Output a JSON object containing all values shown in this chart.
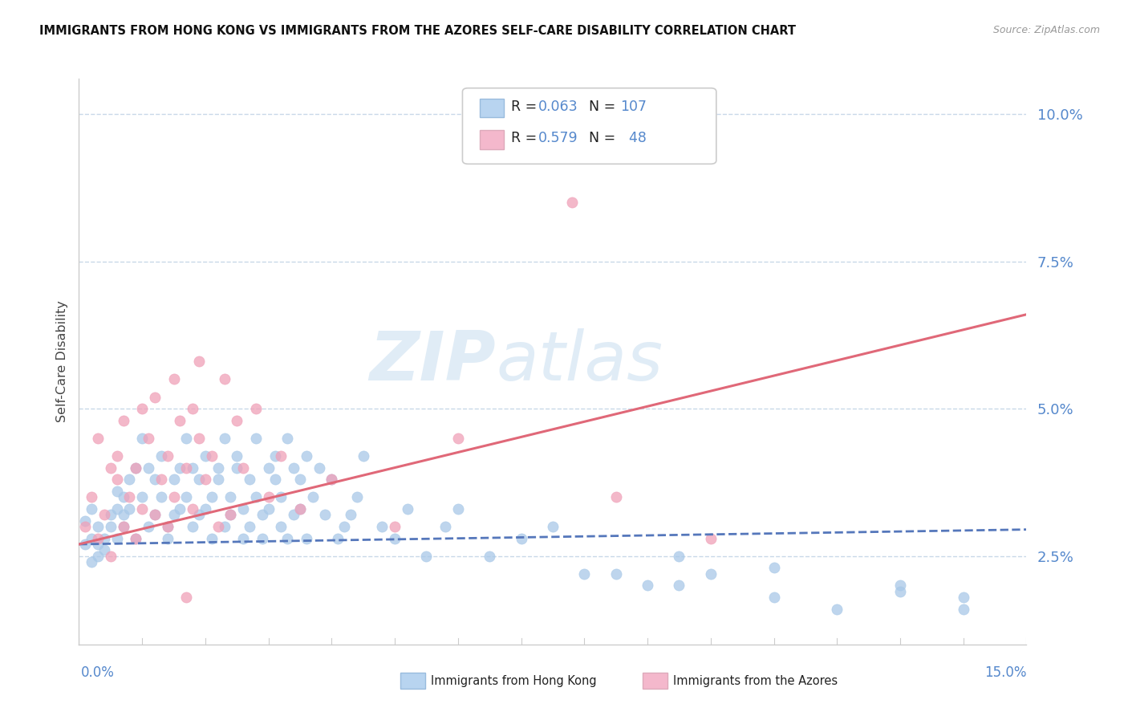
{
  "title": "IMMIGRANTS FROM HONG KONG VS IMMIGRANTS FROM THE AZORES SELF-CARE DISABILITY CORRELATION CHART",
  "source": "Source: ZipAtlas.com",
  "ylabel": "Self-Care Disability",
  "yticks": [
    0.025,
    0.05,
    0.075,
    0.1
  ],
  "ytick_labels": [
    "2.5%",
    "5.0%",
    "7.5%",
    "10.0%"
  ],
  "xmin": 0.0,
  "xmax": 0.15,
  "ymin": 0.01,
  "ymax": 0.106,
  "hk_color": "#a8c8e8",
  "azores_color": "#f0a0b8",
  "hk_line_color": "#5577bb",
  "azores_line_color": "#e06878",
  "legend_hk_color": "#b8d4f0",
  "legend_azores_color": "#f4b8cc",
  "R_hk": 0.063,
  "N_hk": 107,
  "R_azores": 0.579,
  "N_azores": 48,
  "hk_trend_x": [
    0.0,
    0.15
  ],
  "hk_trend_y": [
    0.027,
    0.0295
  ],
  "azores_trend_x": [
    0.0,
    0.15
  ],
  "azores_trend_y": [
    0.027,
    0.066
  ],
  "hk_x": [
    0.001,
    0.001,
    0.002,
    0.002,
    0.002,
    0.003,
    0.003,
    0.003,
    0.004,
    0.004,
    0.005,
    0.005,
    0.006,
    0.006,
    0.006,
    0.007,
    0.007,
    0.007,
    0.008,
    0.008,
    0.009,
    0.009,
    0.01,
    0.01,
    0.011,
    0.011,
    0.012,
    0.012,
    0.013,
    0.013,
    0.014,
    0.014,
    0.015,
    0.015,
    0.016,
    0.016,
    0.017,
    0.017,
    0.018,
    0.018,
    0.019,
    0.019,
    0.02,
    0.02,
    0.021,
    0.021,
    0.022,
    0.022,
    0.023,
    0.023,
    0.024,
    0.024,
    0.025,
    0.025,
    0.026,
    0.026,
    0.027,
    0.027,
    0.028,
    0.028,
    0.029,
    0.029,
    0.03,
    0.03,
    0.031,
    0.031,
    0.032,
    0.032,
    0.033,
    0.033,
    0.034,
    0.034,
    0.035,
    0.035,
    0.036,
    0.036,
    0.037,
    0.038,
    0.039,
    0.04,
    0.041,
    0.042,
    0.043,
    0.044,
    0.045,
    0.048,
    0.05,
    0.052,
    0.055,
    0.058,
    0.06,
    0.065,
    0.07,
    0.075,
    0.08,
    0.085,
    0.09,
    0.095,
    0.1,
    0.11,
    0.12,
    0.13,
    0.14,
    0.11,
    0.13,
    0.14,
    0.095
  ],
  "hk_y": [
    0.027,
    0.031,
    0.028,
    0.033,
    0.024,
    0.025,
    0.03,
    0.027,
    0.026,
    0.028,
    0.032,
    0.03,
    0.033,
    0.028,
    0.036,
    0.035,
    0.03,
    0.032,
    0.038,
    0.033,
    0.04,
    0.028,
    0.035,
    0.045,
    0.03,
    0.04,
    0.038,
    0.032,
    0.035,
    0.042,
    0.03,
    0.028,
    0.032,
    0.038,
    0.04,
    0.033,
    0.045,
    0.035,
    0.03,
    0.04,
    0.038,
    0.032,
    0.033,
    0.042,
    0.028,
    0.035,
    0.04,
    0.038,
    0.045,
    0.03,
    0.032,
    0.035,
    0.04,
    0.042,
    0.028,
    0.033,
    0.038,
    0.03,
    0.035,
    0.045,
    0.032,
    0.028,
    0.04,
    0.033,
    0.042,
    0.038,
    0.03,
    0.035,
    0.028,
    0.045,
    0.04,
    0.032,
    0.033,
    0.038,
    0.042,
    0.028,
    0.035,
    0.04,
    0.032,
    0.038,
    0.028,
    0.03,
    0.032,
    0.035,
    0.042,
    0.03,
    0.028,
    0.033,
    0.025,
    0.03,
    0.033,
    0.025,
    0.028,
    0.03,
    0.022,
    0.022,
    0.02,
    0.025,
    0.022,
    0.018,
    0.016,
    0.02,
    0.018,
    0.023,
    0.019,
    0.016,
    0.02
  ],
  "azores_x": [
    0.001,
    0.002,
    0.003,
    0.003,
    0.004,
    0.005,
    0.005,
    0.006,
    0.006,
    0.007,
    0.007,
    0.008,
    0.009,
    0.009,
    0.01,
    0.01,
    0.011,
    0.012,
    0.012,
    0.013,
    0.014,
    0.014,
    0.015,
    0.015,
    0.016,
    0.017,
    0.017,
    0.018,
    0.018,
    0.019,
    0.019,
    0.02,
    0.021,
    0.022,
    0.023,
    0.024,
    0.025,
    0.026,
    0.028,
    0.03,
    0.032,
    0.035,
    0.04,
    0.05,
    0.06,
    0.078,
    0.085,
    0.1
  ],
  "azores_y": [
    0.03,
    0.035,
    0.028,
    0.045,
    0.032,
    0.04,
    0.025,
    0.038,
    0.042,
    0.03,
    0.048,
    0.035,
    0.04,
    0.028,
    0.05,
    0.033,
    0.045,
    0.032,
    0.052,
    0.038,
    0.042,
    0.03,
    0.055,
    0.035,
    0.048,
    0.04,
    0.018,
    0.05,
    0.033,
    0.045,
    0.058,
    0.038,
    0.042,
    0.03,
    0.055,
    0.032,
    0.048,
    0.04,
    0.05,
    0.035,
    0.042,
    0.033,
    0.038,
    0.03,
    0.045,
    0.085,
    0.035,
    0.028
  ],
  "grid_color": "#c8d8e8",
  "spine_color": "#cccccc",
  "tick_color": "#5588cc",
  "title_color": "#111111",
  "source_color": "#999999",
  "ylabel_color": "#444444"
}
